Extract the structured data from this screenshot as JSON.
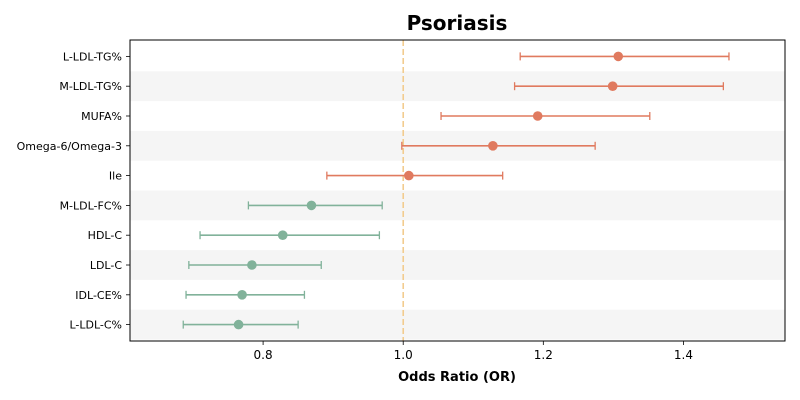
{
  "chart_data": {
    "type": "forest",
    "title": "Psoriasis",
    "xlabel": "Odds Ratio (OR)",
    "ylabel": "",
    "xlim": [
      0.61,
      1.545
    ],
    "xticks": [
      0.8,
      1.0,
      1.2,
      1.4
    ],
    "xtick_labels": [
      "0.8",
      "1.0",
      "1.2",
      "1.4"
    ],
    "reference_line": 1.0,
    "grid": false,
    "colors": {
      "positive": "#e07a5f",
      "negative": "#81b29a",
      "reference": "#f2cc8f",
      "band": "#f5f5f5"
    },
    "rows": [
      {
        "label": "L-LDL-TG%",
        "or": 1.307,
        "lower": 1.167,
        "upper": 1.465
      },
      {
        "label": "M-LDL-TG%",
        "or": 1.299,
        "lower": 1.159,
        "upper": 1.457
      },
      {
        "label": "MUFA%",
        "or": 1.192,
        "lower": 1.054,
        "upper": 1.352
      },
      {
        "label": "Omega-6/Omega-3",
        "or": 1.128,
        "lower": 0.998,
        "upper": 1.274
      },
      {
        "label": "Ile",
        "or": 1.008,
        "lower": 0.891,
        "upper": 1.142
      },
      {
        "label": "M-LDL-FC%",
        "or": 0.869,
        "lower": 0.779,
        "upper": 0.97
      },
      {
        "label": "HDL-C",
        "or": 0.828,
        "lower": 0.71,
        "upper": 0.966
      },
      {
        "label": "LDL-C",
        "or": 0.784,
        "lower": 0.694,
        "upper": 0.883
      },
      {
        "label": "IDL-CE%",
        "or": 0.77,
        "lower": 0.69,
        "upper": 0.859
      },
      {
        "label": "L-LDL-C%",
        "or": 0.765,
        "lower": 0.686,
        "upper": 0.85
      }
    ]
  }
}
